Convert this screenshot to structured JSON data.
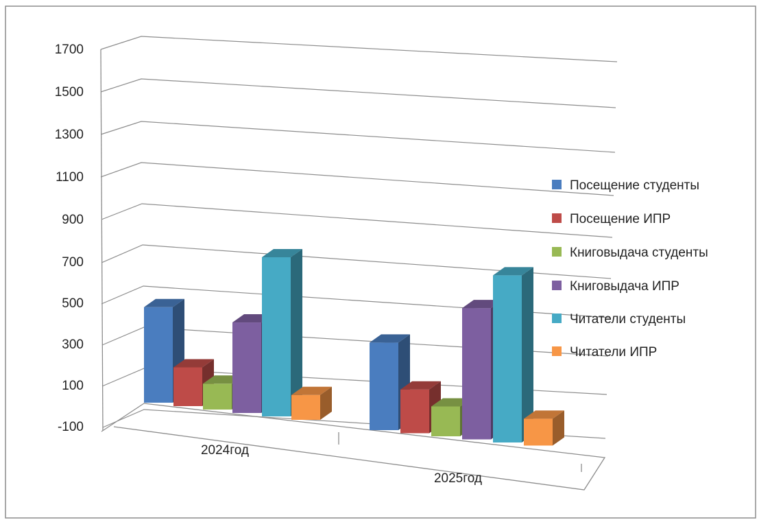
{
  "chart_data": {
    "type": "bar",
    "variant": "3d-clustered-column",
    "categories": [
      "2024год",
      "2025год"
    ],
    "y_ticks": [
      "1700",
      "1500",
      "1300",
      "1100",
      "900",
      "700",
      "500",
      "300",
      "100",
      "-100"
    ],
    "ylim": [
      -100,
      1700
    ],
    "grid": true,
    "legend_position": "right",
    "series": [
      {
        "name": "Посещение студенты",
        "values": [
          380,
          340
        ],
        "color": "#4a7dbf"
      },
      {
        "name": "Посещение ИПР",
        "values": [
          95,
          120
        ],
        "color": "#be4b48"
      },
      {
        "name": "Книговыдача студенты",
        "values": [
          30,
          50
        ],
        "color": "#98b954"
      },
      {
        "name": "Книговыдача ИПР",
        "values": [
          355,
          560
        ],
        "color": "#7d5fa0"
      },
      {
        "name": "Читатели студенты",
        "values": [
          700,
          740
        ],
        "color": "#46aac5"
      },
      {
        "name": "Читатели ИПР",
        "values": [
          25,
          35
        ],
        "color": "#f79646"
      }
    ]
  }
}
